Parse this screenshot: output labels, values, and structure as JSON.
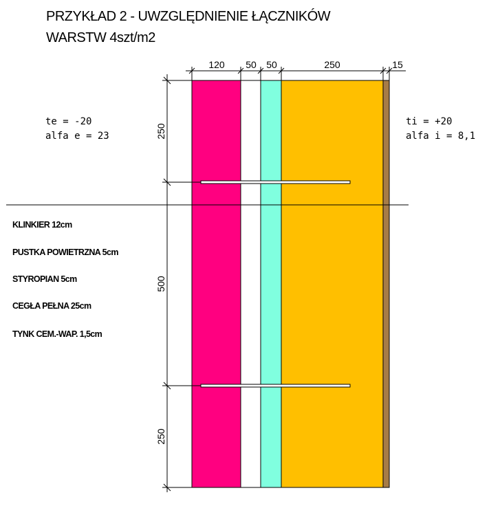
{
  "title": {
    "line1": "PRZYKŁAD 2  - UWZGLĘDNIENIE ŁĄCZNIKÓW",
    "line2": "WARSTW  4szt/m2"
  },
  "dimensions": {
    "horizontal": [
      "120",
      "50",
      "50",
      "250",
      "15"
    ],
    "vertical": [
      "250",
      "500",
      "250"
    ]
  },
  "conditions": {
    "external": {
      "temp": "te = -20",
      "alpha": "alfa e = 23"
    },
    "internal": {
      "temp": "ti = +20",
      "alpha": "alfa i = 8,1"
    }
  },
  "layers": [
    {
      "label": "KLINKIER 12cm",
      "color": "#ff0080"
    },
    {
      "label": "PUSTKA POWIETRZNA 5cm",
      "color": "#ffffff"
    },
    {
      "label": "STYROPIAN 5cm",
      "color": "#80ffdf"
    },
    {
      "label": "CEGŁA PEŁNA 25cm",
      "color": "#ffbf00"
    },
    {
      "label": "TYNK CEM.-WAP. 1,5cm",
      "color": "#a67c47"
    }
  ]
}
